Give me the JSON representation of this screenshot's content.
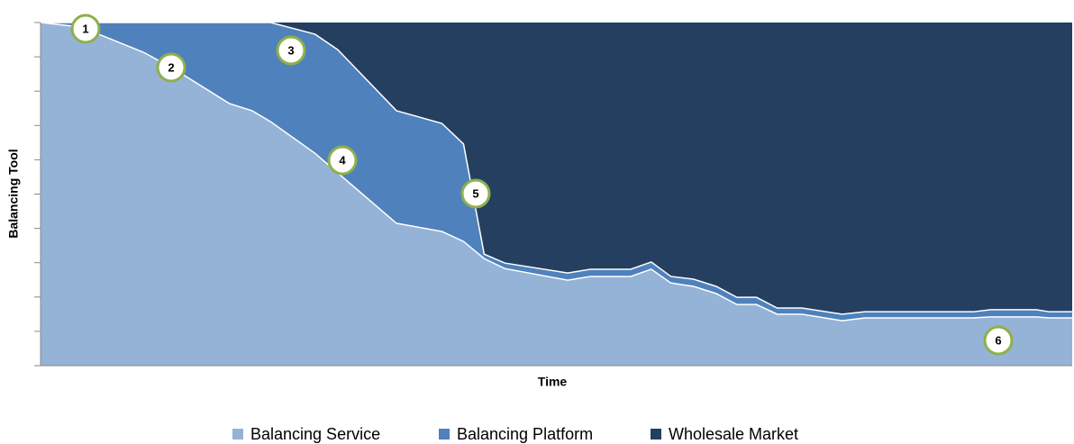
{
  "chart_data": {
    "type": "stacked_area",
    "y_label": "Balancing Tool",
    "x_label": "Time",
    "x": [
      0,
      3.9,
      10.0,
      12.7,
      18.3,
      20.5,
      22.3,
      26.6,
      28.8,
      34.5,
      38.9,
      41.0,
      43.0,
      45.0,
      51.1,
      53.3,
      57.2,
      59.2,
      61.1,
      63.3,
      65.5,
      67.5,
      69.4,
      71.4,
      73.8,
      77.7,
      79.9,
      90.4,
      92.1,
      96.5,
      97.8,
      100
    ],
    "series": [
      {
        "name": "Balancing Service",
        "color": "#95b3d7",
        "values": [
          100,
          98.7,
          91.3,
          86.9,
          76.4,
          74.3,
          71.1,
          61.9,
          56.2,
          41.5,
          39.1,
          36.2,
          31.2,
          28.3,
          24.9,
          26.0,
          26.0,
          28.1,
          24.1,
          23.1,
          21.0,
          17.8,
          17.8,
          15.0,
          15.0,
          13.1,
          13.9,
          13.9,
          14.2,
          14.2,
          13.9,
          13.9
        ]
      },
      {
        "name": "Balancing Platform",
        "color": "#4f81bd",
        "values": [
          0,
          1.3,
          8.7,
          13.1,
          23.6,
          25.7,
          28.9,
          34.7,
          35.9,
          32.8,
          31.5,
          28.4,
          1.3,
          1.6,
          2.1,
          2.1,
          2.1,
          2.1,
          1.9,
          2.1,
          2.1,
          2.1,
          2.1,
          1.8,
          1.8,
          1.9,
          1.8,
          1.8,
          2.1,
          2.1,
          1.8,
          1.8
        ]
      },
      {
        "name": "Wholesale Market",
        "color": "#243f60",
        "values": [
          0,
          0,
          0,
          0,
          0,
          0,
          0,
          3.4,
          7.9,
          25.7,
          29.4,
          35.4,
          67.5,
          70.1,
          73.0,
          71.9,
          71.9,
          69.8,
          74.0,
          74.8,
          76.9,
          80.1,
          80.1,
          83.2,
          83.2,
          85.0,
          84.3,
          84.3,
          83.7,
          83.7,
          84.3,
          84.3
        ]
      }
    ],
    "xlim": [
      0,
      100
    ],
    "ylim": [
      0,
      100
    ],
    "yticks": [
      0,
      10,
      20,
      30,
      40,
      50,
      60,
      70,
      80,
      90,
      100
    ],
    "annotations": [
      "1",
      "2",
      "3",
      "4",
      "5",
      "6"
    ]
  }
}
